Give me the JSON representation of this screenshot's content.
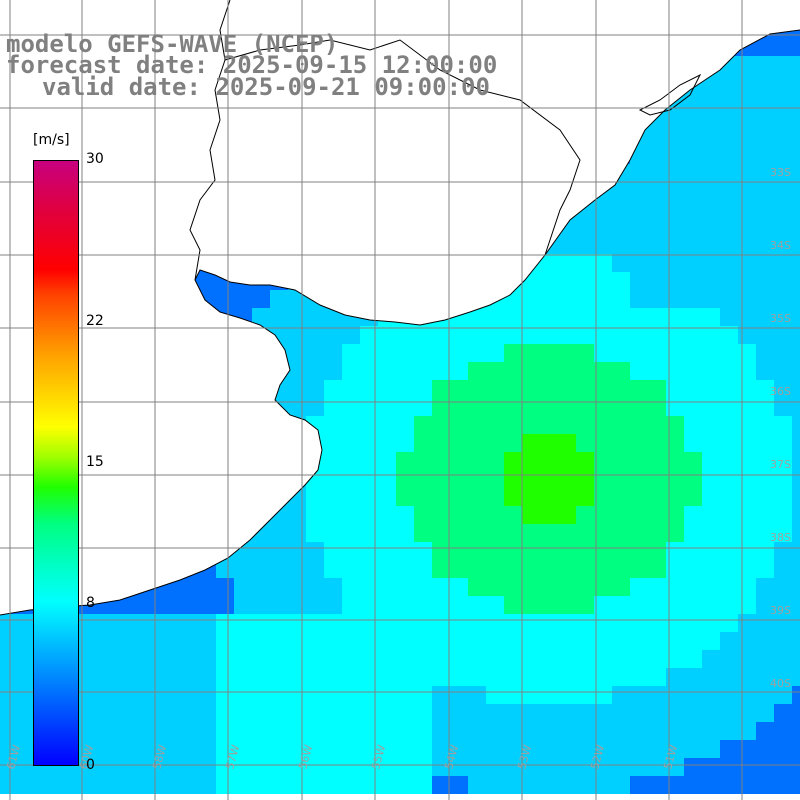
{
  "title": {
    "model": "modelo GEFS-WAVE (NCEP)",
    "forecast": "forecast date: 2025-09-15 12:00:00",
    "valid": "valid date: 2025-09-21 09:00:00"
  },
  "colorbar": {
    "unit": "[m/s]",
    "ticks": [
      "30",
      "22",
      "15",
      "8",
      "0"
    ],
    "tick_values": [
      30,
      22,
      15,
      8,
      0
    ],
    "min": 0,
    "max": 30
  },
  "map": {
    "variable": "wind speed",
    "palette": [
      "#0000ff",
      "#0070ff",
      "#00d0ff",
      "#00ffff",
      "#00ff80",
      "#20ff00",
      "#a0ff00",
      "#ffff00",
      "#ffa000",
      "#ff0000",
      "#c80080"
    ],
    "land_color": "#ffffff",
    "grid": true,
    "vector_color": "#ffffff",
    "lon_labels": [
      "61W",
      "60W",
      "58W",
      "57W",
      "56W",
      "55W",
      "54W",
      "53W",
      "52W",
      "51W"
    ],
    "lat_labels": [
      "33S",
      "34S",
      "35S",
      "36S",
      "37S",
      "38S",
      "39S",
      "40S"
    ]
  }
}
